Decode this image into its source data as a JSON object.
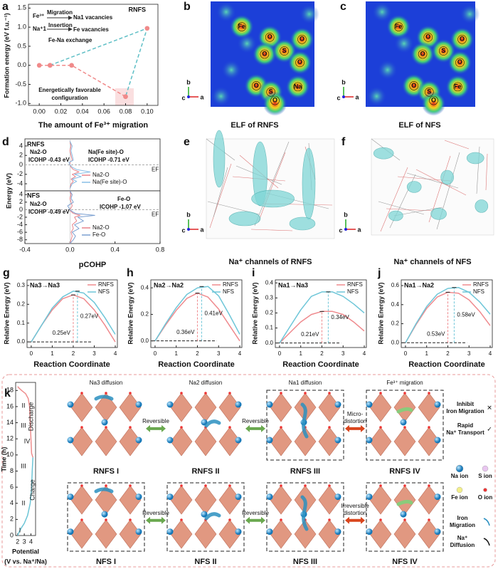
{
  "chart_data": [
    {
      "label": "a",
      "type": "line",
      "title": "RNFS",
      "xlabel": "The amount of Fe³⁺ migration",
      "ylabel": "Formation energy (eV f.u.⁻¹)",
      "xlim": [
        -0.01,
        0.11
      ],
      "xticks": [
        {
          "value": 0,
          "label": "0.00"
        },
        0.02,
        0.04,
        0.06,
        0.08,
        {
          "value": 0.1,
          "label": "0.10"
        }
      ],
      "ylim": [
        -1.05,
        1.6
      ],
      "yticks": [
        {
          "value": -1,
          "label": "-1.0"
        },
        -0.5,
        {
          "value": 0,
          "label": "0.0"
        },
        0.5,
        {
          "value": 1,
          "label": "1.0"
        },
        1.5
      ],
      "markers": true,
      "series": [
        {
          "color": "#f08a8a",
          "dashed": true,
          "x": [
            0,
            0.01,
            0.03,
            0.08
          ],
          "values": [
            0,
            0,
            0,
            -0.82
          ]
        },
        {
          "color": "#5fbfc6",
          "dashed": true,
          "x": [
            0.01,
            0.1,
            0.08
          ],
          "values": [
            0,
            0.97,
            -0.82
          ]
        }
      ],
      "annotations": [
        "Fe³⁺",
        "Migration",
        "Na1 vacancies",
        "Na⁺1",
        "Insertion",
        "Fe vacancies",
        "Fe-Na exchange",
        "Energetically favorable",
        "configuration"
      ]
    },
    {
      "label": "d",
      "type": "line",
      "orientation": "horizontal",
      "title": "RNFS",
      "ylabel": "Energy (eV)",
      "xlim": [
        -0.4,
        0.8
      ],
      "ylim": [
        -5.5,
        5.5
      ],
      "yticks": [
        4,
        2,
        0,
        -2,
        -4
      ],
      "fermi_level": 0,
      "fermi_label": "EF",
      "y": [
        -5,
        -4,
        -3.5,
        -3,
        -2.5,
        -2,
        -1.5,
        -1,
        -0.5,
        0,
        0.5,
        1,
        2,
        3,
        4,
        5
      ],
      "series": [
        {
          "name": "Na2-O",
          "color": "#e8838a",
          "values": [
            0,
            0.01,
            0.03,
            0.01,
            0.05,
            0.02,
            0.08,
            0.03,
            0.01,
            0,
            0,
            0.02,
            0.01,
            0,
            0.01,
            0
          ]
        },
        {
          "name": "Na(Fe site)-O",
          "color": "#88bde6",
          "values": [
            0,
            0.02,
            0.06,
            0.02,
            0.1,
            0.04,
            0.18,
            0.06,
            0.02,
            0,
            -0.01,
            0.03,
            0.02,
            0.01,
            0.02,
            0
          ]
        }
      ],
      "legend": "lower right",
      "annotations": [
        "Na2-O",
        "ICOHP -0.43 eV",
        "Na(Fe site)-O",
        "ICOHP -0.71 eV"
      ]
    },
    {
      "type": "line",
      "orientation": "horizontal",
      "title": "NFS",
      "xlabel": "pCOHP",
      "xlim": [
        -0.4,
        0.8
      ],
      "xticks": [
        -0.4,
        {
          "value": 0,
          "label": "0.0"
        },
        0.4,
        0.8
      ],
      "ylim": [
        -9,
        5
      ],
      "yticks": [
        4,
        2,
        0,
        -2,
        -4,
        -6,
        -8
      ],
      "fermi_level": 0,
      "fermi_label": "EF",
      "y": [
        -9,
        -8,
        -7,
        -6,
        -5,
        -4,
        -3,
        -2,
        -1.5,
        -1,
        -0.5,
        0,
        1,
        2,
        3,
        4,
        5
      ],
      "series": [
        {
          "name": "Na2-O",
          "color": "#e8838a",
          "values": [
            0,
            0.01,
            0.02,
            0.01,
            0.03,
            0.02,
            0.06,
            0.04,
            0.09,
            0.03,
            0.01,
            0,
            0.02,
            0.01,
            0,
            0.01,
            0
          ]
        },
        {
          "name": "Fe-O",
          "color": "#7a9fd0",
          "values": [
            0,
            0.03,
            0.05,
            0.02,
            0.08,
            0.04,
            0.12,
            0.07,
            0.22,
            0.05,
            0.02,
            0,
            -0.02,
            0.03,
            0.01,
            0.02,
            0
          ]
        }
      ],
      "legend": "lower right",
      "annotations": [
        "Na2-O",
        "ICOHP -0.49 eV",
        "Fe-O",
        "ICOHP -1.07 eV"
      ]
    },
    {
      "label": "g",
      "type": "line",
      "title": "Na3→Na3",
      "xlabel": "Reaction Coordinate",
      "ylabel": "Relative Energy (eV)",
      "xlim": [
        -0.2,
        4.1
      ],
      "xticks": [
        0,
        1,
        2,
        3,
        4
      ],
      "ylim": [
        -0.03,
        0.33
      ],
      "yticks": [
        {
          "value": 0,
          "label": "0.0"
        },
        0.1,
        0.2,
        0.3
      ],
      "x": [
        0,
        0.5,
        1,
        1.5,
        2,
        2.5,
        3,
        3.5,
        4
      ],
      "series": [
        {
          "name": "RNFS",
          "color": "#ef8a8e",
          "values": [
            0,
            0.09,
            0.17,
            0.23,
            0.25,
            0.23,
            0.17,
            0.09,
            0
          ]
        },
        {
          "name": "NFS",
          "color": "#6ec6d8",
          "values": [
            0,
            0.09,
            0.18,
            0.24,
            0.27,
            0.26,
            0.21,
            0.13,
            0.04
          ]
        }
      ],
      "legend": "upper right",
      "peak_x": [
        2,
        2.2
      ],
      "barriers": [
        0.25,
        0.27
      ],
      "barrier_labels": [
        "0.25eV",
        "0.27eV"
      ]
    },
    {
      "label": "h",
      "type": "line",
      "title": "Na2→Na2",
      "xlabel": "Reaction Coordinate",
      "ylabel": "Relative Energy (eV)",
      "xlim": [
        -0.2,
        4.1
      ],
      "xticks": [
        0,
        1,
        2,
        3,
        4
      ],
      "ylim": [
        -0.05,
        0.46
      ],
      "yticks": [
        {
          "value": 0,
          "label": "0.0"
        },
        0.2,
        0.4
      ],
      "x": [
        0,
        0.5,
        1,
        1.5,
        2,
        2.5,
        3,
        3.5,
        4
      ],
      "series": [
        {
          "name": "RNFS",
          "color": "#ef8a8e",
          "values": [
            0,
            0.12,
            0.23,
            0.32,
            0.36,
            0.33,
            0.24,
            0.12,
            0
          ]
        },
        {
          "name": "NFS",
          "color": "#6ec6d8",
          "values": [
            0,
            0.13,
            0.25,
            0.35,
            0.4,
            0.41,
            0.34,
            0.2,
            0.05
          ]
        }
      ],
      "legend": "upper right",
      "peak_x": [
        2,
        2.2
      ],
      "barriers": [
        0.36,
        0.41
      ],
      "barrier_labels": [
        "0.36eV",
        "0.41eV"
      ]
    },
    {
      "label": "i",
      "type": "line",
      "title": "Na1→Na3",
      "xlabel": "Reaction Coordinate",
      "ylabel": "Relative Energy (eV)",
      "xlim": [
        -0.2,
        4.1
      ],
      "xticks": [
        0,
        1,
        2,
        3,
        4
      ],
      "ylim": [
        -0.03,
        0.42
      ],
      "yticks": [
        {
          "value": 0,
          "label": "0.0"
        },
        0.1,
        0.2,
        0.3,
        0.4
      ],
      "x": [
        0,
        0.5,
        1,
        1.5,
        2,
        2.5,
        3,
        3.5,
        4
      ],
      "series": [
        {
          "name": "RNFS",
          "color": "#ef8a8e",
          "values": [
            0,
            0.07,
            0.14,
            0.19,
            0.21,
            0.21,
            0.19,
            0.14,
            0.08
          ]
        },
        {
          "name": "NFS",
          "color": "#6ec6d8",
          "values": [
            0,
            0.11,
            0.22,
            0.31,
            0.34,
            0.34,
            0.31,
            0.26,
            0.2
          ]
        }
      ],
      "legend": "upper right",
      "peak_x": [
        2,
        2.3
      ],
      "barriers": [
        0.21,
        0.34
      ],
      "barrier_labels": [
        "0.21eV",
        "0.34eV"
      ]
    },
    {
      "label": "j",
      "type": "line",
      "title": "Na1→Na2",
      "xlabel": "Reaction Coordinate",
      "ylabel": "Relative Energy (eV)",
      "xlim": [
        -0.2,
        4.1
      ],
      "xticks": [
        0,
        1,
        2,
        3,
        4
      ],
      "ylim": [
        -0.05,
        0.66
      ],
      "yticks": [
        {
          "value": 0,
          "label": "0.0"
        },
        0.2,
        0.4,
        0.6
      ],
      "x": [
        0,
        0.5,
        1,
        1.5,
        2,
        2.5,
        3,
        3.5,
        4
      ],
      "series": [
        {
          "name": "RNFS",
          "color": "#ef8a8e",
          "values": [
            0,
            0.19,
            0.36,
            0.48,
            0.53,
            0.52,
            0.45,
            0.33,
            0.18
          ]
        },
        {
          "name": "NFS",
          "color": "#6ec6d8",
          "values": [
            0,
            0.2,
            0.38,
            0.51,
            0.57,
            0.58,
            0.53,
            0.43,
            0.3
          ]
        }
      ],
      "legend": "upper right",
      "peak_x": [
        2,
        2.3
      ],
      "barriers": [
        0.53,
        0.58
      ],
      "barrier_labels": [
        "0.53eV",
        "0.58eV"
      ]
    },
    {
      "label": "k",
      "type": "line",
      "xlabel": "Potential",
      "xlabel2": "(V vs. Na⁺/Na)",
      "ylabel": "Time (h)",
      "xlim": [
        1.7,
        4.7
      ],
      "xticks": [
        2,
        3,
        4
      ],
      "ylim": [
        0,
        19
      ],
      "yticks": [
        0,
        2,
        4,
        6,
        8,
        10,
        12,
        14,
        16,
        18
      ],
      "series": [
        {
          "name": "Charge",
          "color": "#6cc5d6",
          "x": [
            2,
            2.2,
            2.6,
            3,
            3.5,
            3.9,
            4.1,
            4.2,
            4.3
          ],
          "values": [
            0,
            0.4,
            1,
            1.5,
            2.5,
            4,
            6,
            8,
            9.7
          ]
        },
        {
          "name": "Discharge",
          "color": "#ee8d8d",
          "x": [
            4.3,
            4.1,
            4,
            3.9,
            3.8,
            3.6,
            3.2,
            2.6,
            2.2,
            2
          ],
          "values": [
            9.7,
            10.2,
            12,
            14,
            16,
            17,
            17.6,
            18,
            18.3,
            18.5
          ]
        }
      ],
      "annotations": [
        "II",
        "III",
        "IV",
        "III",
        "II",
        "I"
      ]
    }
  ],
  "images": [
    {
      "label": "b",
      "caption": "ELF of RNFS",
      "atoms": [
        "Fe",
        "O",
        "O",
        "O",
        "S",
        "O",
        "O",
        "S",
        "Na",
        "O"
      ],
      "axes": [
        "b",
        "c",
        "a"
      ]
    },
    {
      "label": "c",
      "caption": "ELF of NFS",
      "atoms": [
        "Fe",
        "O",
        "O",
        "O",
        "S",
        "O",
        "O",
        "S",
        "Fe",
        "O"
      ],
      "axes": [
        "b",
        "c",
        "a"
      ]
    },
    {
      "label": "e",
      "caption": "Na⁺ channels of RNFS",
      "axes": [
        "b",
        "c",
        "a"
      ]
    },
    {
      "label": "f",
      "caption": "Na⁺ channels of NFS",
      "axes": [
        "b",
        "c",
        "a"
      ]
    }
  ],
  "scheme": {
    "steps": [
      "Na3  diffusion",
      "Na2  diffusion",
      "Na1  diffusion",
      "Fe³⁺ migration"
    ],
    "states": [
      [
        "RNFS I",
        "RNFS II",
        "RNFS III",
        "RNFS IV"
      ],
      [
        "NFS I",
        "NFS II",
        "NFS III",
        "NFS IV"
      ]
    ],
    "transitions": [
      [
        [
          "Reversible"
        ],
        [
          "Reversible"
        ],
        [
          "Micro-",
          "distortion"
        ]
      ],
      [
        [
          "Reversible"
        ],
        [
          "Reversible"
        ],
        [
          "Irreversible",
          "distortion"
        ]
      ]
    ],
    "legend": [
      [
        "Inhibit",
        "Iron Migration"
      ],
      [
        "Rapid",
        "Na⁺ Transport"
      ]
    ],
    "ions": [
      "Na ion",
      "S ion",
      "Fe ion",
      "O ion"
    ],
    "paths": [
      [
        "Iron",
        "Migration"
      ],
      [
        "Na⁺",
        "Diffusion"
      ]
    ]
  }
}
